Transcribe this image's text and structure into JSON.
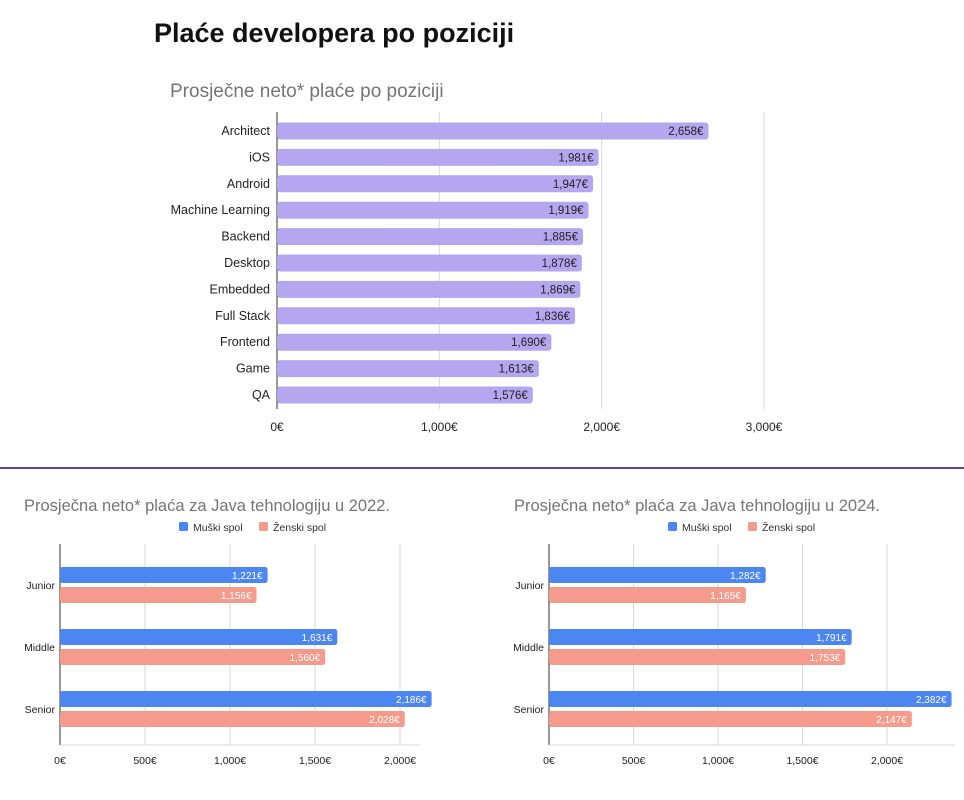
{
  "page": {
    "title": "Plaće developera po poziciji"
  },
  "colors": {
    "position_bar": "#b4a7f0",
    "male": "#4c86f0",
    "female": "#f59b8b",
    "grid": "#d9d9d9",
    "divider": "#6b3fa0"
  },
  "chart_data": [
    {
      "type": "bar",
      "orientation": "horizontal",
      "title": "Prosječne neto* plaće po poziciji",
      "xlabel": "",
      "ylabel": "",
      "categories": [
        "Architect",
        "iOS",
        "Android",
        "Machine Learning",
        "Backend",
        "Desktop",
        "Embedded",
        "Full Stack",
        "Frontend",
        "Game",
        "QA"
      ],
      "values": [
        2658,
        1981,
        1947,
        1919,
        1885,
        1878,
        1869,
        1836,
        1690,
        1613,
        1576
      ],
      "value_labels": [
        "2,658€",
        "1,981€",
        "1,947€",
        "1,919€",
        "1,885€",
        "1,878€",
        "1,869€",
        "1,836€",
        "1,690€",
        "1,613€",
        "1,576€"
      ],
      "xlim": [
        0,
        3000
      ],
      "xticks": [
        0,
        1000,
        2000,
        3000
      ],
      "xtick_labels": [
        "0€",
        "1,000€",
        "2,000€",
        "3,000€"
      ],
      "grid": true,
      "legend": "none"
    },
    {
      "type": "bar",
      "orientation": "horizontal",
      "title": "Prosječna neto* plaća za Java tehnologiju u 2022.",
      "xlabel": "",
      "ylabel": "",
      "categories": [
        "Junior",
        "Middle",
        "Senior"
      ],
      "series": [
        {
          "name": "Muški spol",
          "values": [
            1221,
            1631,
            2186
          ],
          "value_labels": [
            "1,221€",
            "1,631€",
            "2,186€"
          ]
        },
        {
          "name": "Ženski spol",
          "values": [
            1156,
            1560,
            2028
          ],
          "value_labels": [
            "1,156€",
            "1,560€",
            "2,028€"
          ]
        }
      ],
      "xlim": [
        0,
        2200
      ],
      "xticks": [
        0,
        500,
        1000,
        1500,
        2000
      ],
      "xtick_labels": [
        "0€",
        "500€",
        "1,000€",
        "1,500€",
        "2,000€"
      ],
      "grid": true,
      "legend": "top"
    },
    {
      "type": "bar",
      "orientation": "horizontal",
      "title": "Prosječna neto* plaća za Java tehnologiju u 2024.",
      "xlabel": "",
      "ylabel": "",
      "categories": [
        "Junior",
        "Middle",
        "Senior"
      ],
      "series": [
        {
          "name": "Muški spol",
          "values": [
            1282,
            1791,
            2382
          ],
          "value_labels": [
            "1,282€",
            "1,791€",
            "2,382€"
          ]
        },
        {
          "name": "Ženski spol",
          "values": [
            1165,
            1753,
            2147
          ],
          "value_labels": [
            "1,165€",
            "1,753€",
            "2,147€"
          ]
        }
      ],
      "xlim": [
        0,
        2400
      ],
      "xticks": [
        0,
        500,
        1000,
        1500,
        2000
      ],
      "xtick_labels": [
        "0€",
        "500€",
        "1,000€",
        "1,500€",
        "2,000€"
      ],
      "grid": true,
      "legend": "top"
    }
  ]
}
